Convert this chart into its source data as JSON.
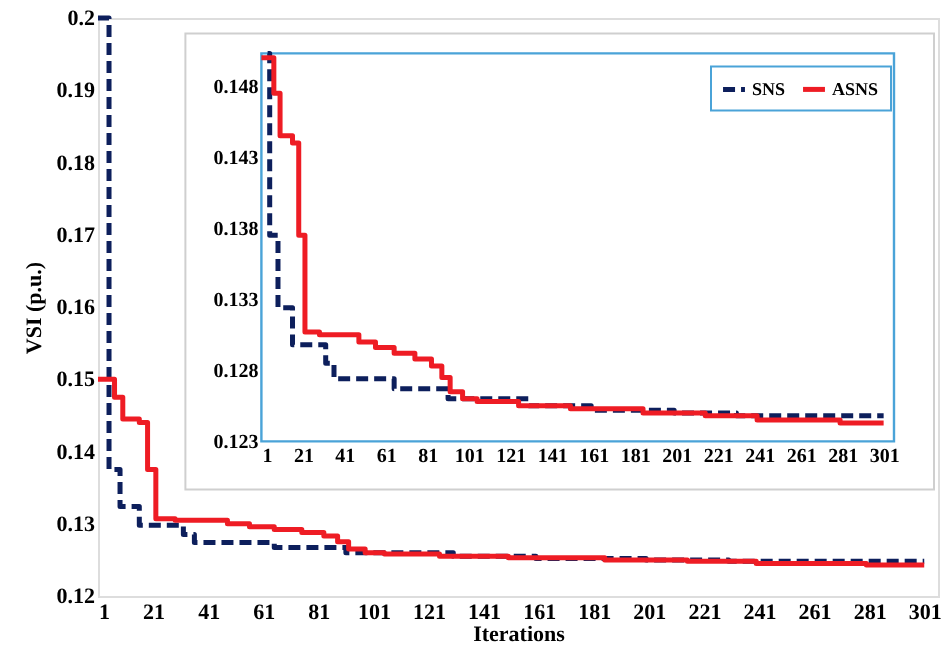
{
  "chart_data": [
    {
      "type": "step",
      "xlabel": "Iterations",
      "ylabel": "VSI (p.u.)",
      "xlim": [
        1,
        306
      ],
      "xticks": [
        1,
        21,
        41,
        61,
        81,
        101,
        121,
        141,
        161,
        181,
        201,
        221,
        241,
        261,
        281,
        301
      ],
      "ylim": [
        0.12,
        0.2
      ],
      "yticks": [
        0.12,
        0.13,
        0.14,
        0.15,
        0.16,
        0.17,
        0.18,
        0.19,
        0.2
      ],
      "series": [
        {
          "color": "#0d1f5c",
          "line_style": "dashed",
          "x": [
            1,
            5,
            9,
            16,
            32,
            36,
            65,
            91,
            130,
            160,
            200,
            230,
            301
          ],
          "values": [
            0.2,
            0.1375,
            0.1324,
            0.1298,
            0.1285,
            0.1274,
            0.1267,
            0.126,
            0.1255,
            0.1252,
            0.125,
            0.1248,
            0.1248
          ]
        },
        {
          "color": "#ee1c24",
          "line_style": "solid",
          "x": [
            1,
            7,
            10,
            16,
            19,
            22,
            29,
            48,
            56,
            65,
            75,
            83,
            88,
            92,
            98,
            105,
            125,
            150,
            185,
            215,
            240,
            280,
            301
          ],
          "values": [
            0.15,
            0.1475,
            0.1445,
            0.144,
            0.1375,
            0.1307,
            0.1305,
            0.13,
            0.1296,
            0.1292,
            0.1288,
            0.1283,
            0.1275,
            0.1265,
            0.126,
            0.1258,
            0.1255,
            0.1253,
            0.125,
            0.1248,
            0.1245,
            0.1243,
            0.1243
          ]
        }
      ]
    },
    {
      "type": "step",
      "legend": "top right",
      "xlim": [
        1,
        306
      ],
      "xticks": [
        1,
        21,
        41,
        61,
        81,
        101,
        121,
        141,
        161,
        181,
        201,
        221,
        241,
        261,
        281,
        301
      ],
      "ylim": [
        0.123,
        0.1503
      ],
      "yticks": [
        0.123,
        0.128,
        0.133,
        0.138,
        0.143,
        0.148
      ],
      "series": [
        {
          "name": "SNS",
          "color": "#0d1f5c",
          "line_style": "dashed",
          "x": [
            4,
            5,
            9,
            16,
            32,
            36,
            65,
            91,
            130,
            160,
            200,
            230,
            301
          ],
          "values": [
            0.1503,
            0.1375,
            0.1324,
            0.1298,
            0.1285,
            0.1274,
            0.1267,
            0.126,
            0.1255,
            0.1252,
            0.125,
            0.1248,
            0.1248
          ]
        },
        {
          "name": "ASNS",
          "color": "#ee1c24",
          "line_style": "solid",
          "x": [
            1,
            7,
            10,
            16,
            19,
            22,
            29,
            48,
            56,
            65,
            75,
            83,
            88,
            92,
            98,
            105,
            125,
            150,
            185,
            215,
            240,
            280,
            301
          ],
          "values": [
            0.15,
            0.1475,
            0.1445,
            0.144,
            0.1375,
            0.1307,
            0.1305,
            0.13,
            0.1296,
            0.1292,
            0.1288,
            0.1283,
            0.1275,
            0.1265,
            0.126,
            0.1258,
            0.1255,
            0.1253,
            0.125,
            0.1248,
            0.1245,
            0.1243,
            0.1243
          ]
        }
      ]
    }
  ]
}
